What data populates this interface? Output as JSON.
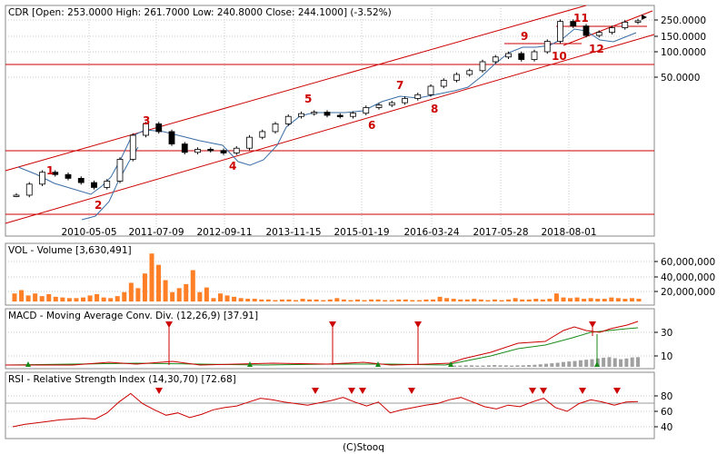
{
  "chart_data": [
    {
      "type": "candlestick",
      "header": "CDR [Open: 253.0000   High: 261.7000   Low: 240.8000   Close: 244.1000]  (-3.52%)",
      "ohlc_last": {
        "open": 253.0,
        "high": 261.7,
        "low": 240.8,
        "close": 244.1,
        "change_pct": -3.52
      },
      "x_ticks": [
        "2010-05-05",
        "2011-07-09",
        "2012-09-11",
        "2013-11-15",
        "2015-01-19",
        "2016-03-24",
        "2017-05-28",
        "2018-08-01"
      ],
      "y_ticks": [
        "250.0000",
        "150.0000",
        "100.0000",
        "50.0000"
      ],
      "y_scale": "log",
      "annotations": [
        "1",
        "2",
        "3",
        "4",
        "5",
        "6",
        "7",
        "8",
        "9",
        "10",
        "11",
        "12"
      ],
      "close_series": [
        1.6,
        2.2,
        3.1,
        2.9,
        2.6,
        2.3,
        2.0,
        2.4,
        4.5,
        9.0,
        12.5,
        10.0,
        7.0,
        5.5,
        6.0,
        5.8,
        5.4,
        6.2,
        8.5,
        10.0,
        12.5,
        15.5,
        16.8,
        17.5,
        16.0,
        15.5,
        17.0,
        20.0,
        21.5,
        23.0,
        26.0,
        29.0,
        37.0,
        44.0,
        52.0,
        58.0,
        75.0,
        86.0,
        95.0,
        80.0,
        100.0,
        135.0,
        240.0,
        210.0,
        160.0,
        175.0,
        200.0,
        235.0,
        244.1
      ]
    },
    {
      "type": "bar",
      "title": "VOL - Volume [3,630,491]",
      "y_ticks": [
        "60,000,000",
        "40,000,000",
        "20,000,000"
      ],
      "values_millions": [
        12,
        17,
        9,
        12,
        8,
        11,
        7,
        6,
        5,
        5,
        6,
        9,
        11,
        6,
        5,
        8,
        14,
        28,
        20,
        42,
        72,
        55,
        32,
        14,
        20,
        26,
        47,
        14,
        21,
        5,
        12,
        9,
        7,
        5,
        4,
        4,
        3,
        3,
        2,
        3,
        3,
        2,
        4,
        3,
        3,
        2,
        3,
        5,
        3,
        2,
        3,
        2,
        3,
        3,
        2,
        2,
        3,
        3,
        2,
        2,
        3,
        3,
        7,
        5,
        4,
        3,
        3,
        4,
        3,
        2,
        3,
        2,
        3,
        5,
        3,
        3,
        4,
        3,
        4,
        12,
        6,
        5,
        6,
        4,
        5,
        4,
        4,
        6,
        5,
        4,
        5,
        4
      ]
    },
    {
      "type": "line",
      "title": "MACD - Moving Average Conv. Div. (12,26,9) [37.91]",
      "y_ticks": [
        "30",
        "10"
      ],
      "macd_values": [
        5,
        5,
        6,
        6,
        5,
        5,
        6,
        7,
        6,
        6,
        5,
        6,
        6,
        7,
        8,
        10,
        12,
        14,
        16,
        19,
        21,
        23,
        26,
        28,
        30,
        33,
        36,
        38,
        34,
        30,
        33,
        37,
        38
      ]
    },
    {
      "type": "line",
      "title": "RSI - Relative Strength Index (14,30,70) [72.68]",
      "y_ticks": [
        "80",
        "60",
        "40"
      ],
      "y_range": [
        30,
        90
      ],
      "rsi_values": [
        40,
        43,
        45,
        47,
        49,
        50,
        51,
        50,
        58,
        72,
        83,
        70,
        62,
        55,
        58,
        52,
        56,
        62,
        65,
        67,
        72,
        77,
        75,
        72,
        70,
        68,
        71,
        74,
        78,
        72,
        67,
        72,
        58,
        62,
        65,
        68,
        70,
        75,
        78,
        72,
        66,
        63,
        68,
        66,
        72,
        77,
        65,
        60,
        70,
        75,
        72,
        68,
        72,
        72.68
      ]
    }
  ],
  "footer": "(C)Stooq"
}
